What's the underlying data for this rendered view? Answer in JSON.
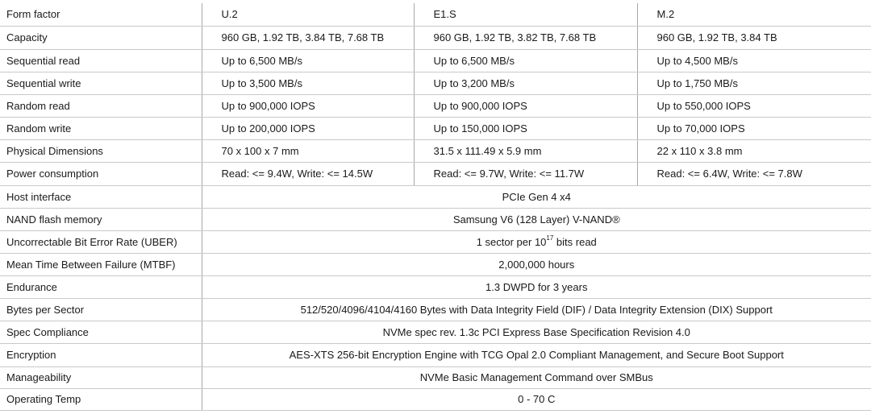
{
  "table": {
    "column_headers": [
      "U.2",
      "E1.S",
      "M.2"
    ],
    "per_model_rows": [
      {
        "label": "Form factor",
        "values": [
          "U.2",
          "E1.S",
          "M.2"
        ]
      },
      {
        "label": "Capacity",
        "values": [
          "960 GB, 1.92 TB, 3.84 TB, 7.68 TB",
          "960 GB, 1.92 TB, 3.82 TB, 7.68 TB",
          "960 GB, 1.92 TB, 3.84 TB"
        ]
      },
      {
        "label": "Sequential read",
        "values": [
          "Up to 6,500 MB/s",
          "Up to 6,500 MB/s",
          "Up to 4,500 MB/s"
        ]
      },
      {
        "label": "Sequential write",
        "values": [
          "Up to 3,500 MB/s",
          "Up to 3,200 MB/s",
          "Up to 1,750 MB/s"
        ]
      },
      {
        "label": "Random read",
        "values": [
          "Up to 900,000 IOPS",
          "Up to 900,000 IOPS",
          "Up to 550,000 IOPS"
        ]
      },
      {
        "label": "Random write",
        "values": [
          "Up to 200,000 IOPS",
          "Up to 150,000 IOPS",
          "Up to 70,000 IOPS"
        ]
      },
      {
        "label": "Physical Dimensions",
        "values": [
          "70 x 100 x 7 mm",
          "31.5 x 111.49 x 5.9 mm",
          "22 x 110 x 3.8 mm"
        ]
      },
      {
        "label": "Power consumption",
        "values": [
          "Read: <= 9.4W, Write: <= 14.5W",
          "Read: <= 9.7W, Write: <= 11.7W",
          "Read: <= 6.4W, Write: <= 7.8W"
        ]
      }
    ],
    "shared_rows": [
      {
        "label": "Host interface",
        "value": "PCIe Gen 4 x4"
      },
      {
        "label": "NAND flash memory",
        "value": "Samsung V6 (128 Layer) V-NAND®"
      },
      {
        "label": "Uncorrectable Bit Error Rate (UBER)",
        "value_prefix": "1 sector per 10",
        "value_exp": "17",
        "value_suffix": " bits read"
      },
      {
        "label": "Mean Time Between Failure (MTBF)",
        "value": "2,000,000 hours"
      },
      {
        "label": "Endurance",
        "value": "1.3 DWPD for 3 years"
      }
    ],
    "full_rows": [
      {
        "label": "Bytes per Sector",
        "value": "512/520/4096/4104/4160 Bytes with Data Integrity Field (DIF) / Data Integrity Extension (DIX) Support"
      },
      {
        "label": "Spec Compliance",
        "value": "NVMe spec rev. 1.3c PCI Express Base Specification Revision 4.0"
      },
      {
        "label": "Encryption",
        "value": "AES-XTS 256-bit Encryption Engine with TCG Opal 2.0 Compliant Management, and Secure Boot Support"
      },
      {
        "label": "Manageability",
        "value": "NVMe Basic Management Command over SMBus"
      },
      {
        "label": "Operating Temp",
        "value": "0 - 70 C"
      }
    ]
  }
}
